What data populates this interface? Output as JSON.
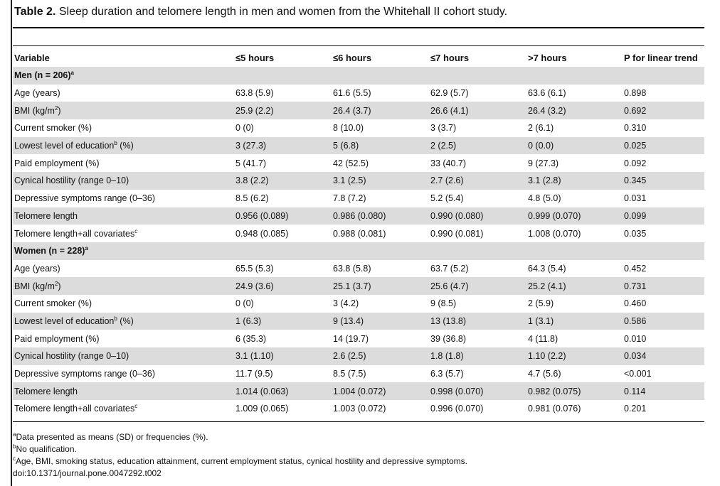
{
  "caption": {
    "label": "Table 2.",
    "text": "Sleep duration and telomere length in men and women from the Whitehall II cohort study."
  },
  "table": {
    "headers": [
      "Variable",
      "≤5 hours",
      "≤6 hours",
      "≤7 hours",
      ">7 hours",
      "P for linear trend"
    ],
    "sections": [
      {
        "title": "Men (n = 206)",
        "title_sup": "a",
        "rows": [
          {
            "label": "Age (years)",
            "sup": "",
            "suffix": "",
            "values": [
              "63.8 (5.9)",
              "61.6 (5.5)",
              "62.9 (5.7)",
              "63.6 (6.1)",
              "0.898"
            ]
          },
          {
            "label": "BMI (kg/m",
            "sup": "2",
            "suffix": ")",
            "values": [
              "25.9 (2.2)",
              "26.4 (3.7)",
              "26.6 (4.1)",
              "26.4 (3.2)",
              "0.692"
            ]
          },
          {
            "label": "Current smoker (%)",
            "sup": "",
            "suffix": "",
            "values": [
              "0 (0)",
              "8 (10.0)",
              "3 (3.7)",
              "2 (6.1)",
              "0.310"
            ]
          },
          {
            "label": "Lowest level of education",
            "sup": "b",
            "suffix": " (%)",
            "values": [
              "3 (27.3)",
              "5 (6.8)",
              "2 (2.5)",
              "0 (0.0)",
              "0.025"
            ]
          },
          {
            "label": "Paid employment (%)",
            "sup": "",
            "suffix": "",
            "values": [
              "5 (41.7)",
              "42 (52.5)",
              "33 (40.7)",
              "9 (27.3)",
              "0.092"
            ]
          },
          {
            "label": "Cynical hostility (range 0–10)",
            "sup": "",
            "suffix": "",
            "values": [
              "3.8 (2.2)",
              "3.1 (2.5)",
              "2.7 (2.6)",
              "3.1 (2.8)",
              "0.345"
            ]
          },
          {
            "label": "Depressive symptoms range (0–36)",
            "sup": "",
            "suffix": "",
            "values": [
              "8.5 (6.2)",
              "7.8 (7.2)",
              "5.2 (5.4)",
              "4.8 (5.0)",
              "0.031"
            ]
          },
          {
            "label": "Telomere length",
            "sup": "",
            "suffix": "",
            "values": [
              "0.956 (0.089)",
              "0.986 (0.080)",
              "0.990 (0.080)",
              "0.999 (0.070)",
              "0.099"
            ]
          },
          {
            "label": "Telomere length+all covariates",
            "sup": "c",
            "suffix": "",
            "values": [
              "0.948 (0.085)",
              "0.988 (0.081)",
              "0.990 (0.081)",
              "1.008 (0.070)",
              "0.035"
            ]
          }
        ]
      },
      {
        "title": "Women (n = 228)",
        "title_sup": "a",
        "rows": [
          {
            "label": "Age (years)",
            "sup": "",
            "suffix": "",
            "values": [
              "65.5 (5.3)",
              "63.8 (5.8)",
              "63.7 (5.2)",
              "64.3 (5.4)",
              "0.452"
            ]
          },
          {
            "label": "BMI (kg/m",
            "sup": "2",
            "suffix": ")",
            "values": [
              "24.9 (3.6)",
              "25.1 (3.7)",
              "25.6 (4.7)",
              "25.2 (4.1)",
              "0.731"
            ]
          },
          {
            "label": "Current smoker (%)",
            "sup": "",
            "suffix": "",
            "values": [
              "0 (0)",
              "3 (4.2)",
              "9 (8.5)",
              "2 (5.9)",
              "0.460"
            ]
          },
          {
            "label": "Lowest level of education",
            "sup": "b",
            "suffix": " (%)",
            "values": [
              "1 (6.3)",
              "9 (13.4)",
              "13 (13.8)",
              "1 (3.1)",
              "0.586"
            ]
          },
          {
            "label": "Paid employment (%)",
            "sup": "",
            "suffix": "",
            "values": [
              "6 (35.3)",
              "14 (19.7)",
              "39 (36.8)",
              "4 (11.8)",
              "0.010"
            ]
          },
          {
            "label": "Cynical hostility (range 0–10)",
            "sup": "",
            "suffix": "",
            "values": [
              "3.1 (1.10)",
              "2.6 (2.5)",
              "1.8 (1.8)",
              "1.10 (2.2)",
              "0.034"
            ]
          },
          {
            "label": "Depressive symptoms range (0–36)",
            "sup": "",
            "suffix": "",
            "values": [
              "11.7 (9.5)",
              "8.5 (7.5)",
              "6.3 (5.7)",
              "4.7 (5.6)",
              "<0.001"
            ]
          },
          {
            "label": "Telomere length",
            "sup": "",
            "suffix": "",
            "values": [
              "1.014 (0.063)",
              "1.004 (0.072)",
              "0.998 (0.070)",
              "0.982 (0.075)",
              "0.114"
            ]
          },
          {
            "label": "Telomere length+all covariates",
            "sup": "c",
            "suffix": "",
            "values": [
              "1.009 (0.065)",
              "1.003 (0.072)",
              "0.996 (0.070)",
              "0.981 (0.076)",
              "0.201"
            ]
          }
        ]
      }
    ]
  },
  "footnotes": [
    {
      "mark": "a",
      "text": "Data presented as means (SD) or frequencies (%)."
    },
    {
      "mark": "b",
      "text": "No qualification."
    },
    {
      "mark": "c",
      "text": "Age, BMI, smoking status, education attainment, current employment status, cynical hostility and depressive symptoms."
    },
    {
      "mark": "",
      "text": "doi:10.1371/journal.pone.0047292.t002"
    }
  ],
  "colors": {
    "shade": "#dcdcdc",
    "rule": "#111111"
  }
}
